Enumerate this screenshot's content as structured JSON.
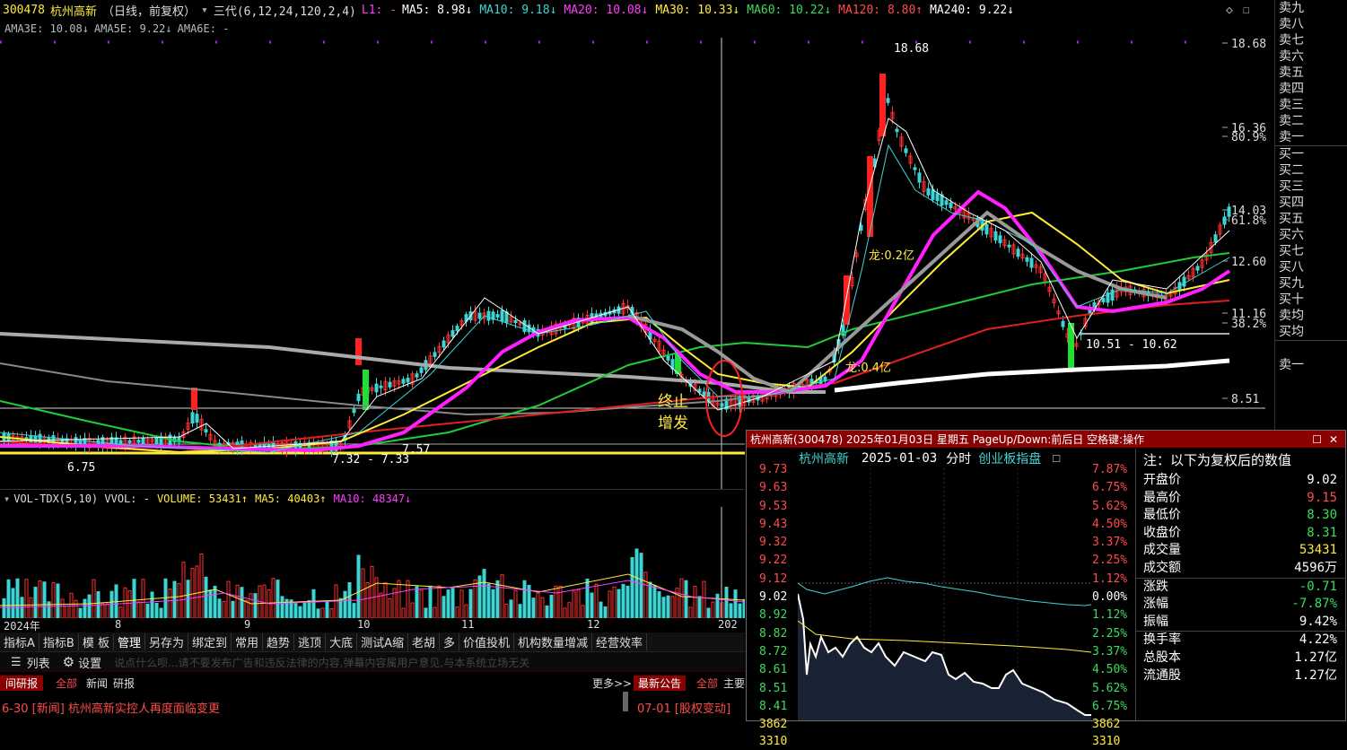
{
  "header": {
    "code": "300478",
    "name": "杭州高新",
    "mode": "（日线，前复权）",
    "indicator": "三代(6,12,24,120,2,4)",
    "l1": "L1: -",
    "ma_items": [
      {
        "label": "MA5: 8.98↓",
        "color": "#ffffff"
      },
      {
        "label": "MA10: 9.18↓",
        "color": "#3dd4d4"
      },
      {
        "label": "MA20: 10.08↓",
        "color": "#ff3dff"
      },
      {
        "label": "MA30: 10.33↓",
        "color": "#ffeb3b"
      },
      {
        "label": "MA60: 10.22↓",
        "color": "#3bdd5c"
      },
      {
        "label": "MA120: 8.80↑",
        "color": "#ff4b4b"
      },
      {
        "label": "MA240: 9.22↓",
        "color": "#ffffff"
      }
    ],
    "ama_items": [
      "AMA3E: 10.08↓",
      "AMA5E: 9.22↓",
      "AMA6E: -"
    ]
  },
  "price_axis": [
    "18.68",
    "16.36",
    "80.9%",
    "14.03",
    "61.8%",
    "12.60",
    "11.16",
    "38.2%",
    "8.51"
  ],
  "annotations": {
    "high": "18.68",
    "low": "6.75",
    "range1": "7.32 - 7.33",
    "range1b": "7.57",
    "range2": "10.51 - 10.62",
    "dragon1": "龙:0.2亿",
    "dragon2": "龙:0.4亿",
    "stop_text1": "终止",
    "stop_text2": "增发"
  },
  "volume_header": {
    "title": "VOL-TDX(5,10) VVOL: -",
    "volume": "VOLUME: 53431↑",
    "ma5": "MA5: 40403↑",
    "ma10": "MA10: 48347↓"
  },
  "date_axis": [
    "2024年",
    "8",
    "9",
    "10",
    "11",
    "12",
    "202"
  ],
  "toolbar_tabs": [
    "指标A",
    "指标B",
    "模 板",
    "管理",
    "另存为",
    "绑定到",
    "常用",
    "趋势",
    "逃顶",
    "大底",
    "测试A缩",
    "老胡",
    "多",
    "价值投机",
    "机构数量增减",
    "经营效率"
  ],
  "cmdbar": {
    "list_label": "列表",
    "settings_label": "设置",
    "placeholder": "说点什么呗...请不要发布广告和违反法律的内容,弹幕内容属用户意见,与本系统立场无关"
  },
  "newsbar": {
    "tabs_left": [
      "间研报",
      "全部",
      "新闻",
      "研报"
    ],
    "more": "更多>>",
    "tabs_right": [
      "最新公告",
      "全部",
      "主要"
    ],
    "news_left": "6-30 [新闻] 杭州高新实控人再度面临变更",
    "news_right": "07-01 [股权变动]"
  },
  "order_book": [
    "卖九",
    "卖八",
    "卖七",
    "卖六",
    "卖五",
    "卖四",
    "卖三",
    "卖二",
    "卖一",
    "买一",
    "买二",
    "买三",
    "买四",
    "买五",
    "买六",
    "买七",
    "买八",
    "买九",
    "买十",
    "卖均",
    "买均",
    "",
    "卖一"
  ],
  "popup": {
    "title": "杭州高新(300478) 2025年01月03日 星期五 PageUp/Down:前后日 空格键:操作",
    "name": "杭州高新",
    "date": "2025-01-03",
    "type": "分时",
    "board": "创业板指",
    "board_suffix": "盘",
    "left_prices": [
      {
        "v": "9.73",
        "c": "red"
      },
      {
        "v": "9.63",
        "c": "red"
      },
      {
        "v": "9.53",
        "c": "red"
      },
      {
        "v": "9.43",
        "c": "red"
      },
      {
        "v": "9.32",
        "c": "red"
      },
      {
        "v": "9.22",
        "c": "red"
      },
      {
        "v": "9.12",
        "c": "red"
      },
      {
        "v": "9.02",
        "c": "white"
      },
      {
        "v": "8.92",
        "c": "green"
      },
      {
        "v": "8.82",
        "c": "green"
      },
      {
        "v": "8.72",
        "c": "green"
      },
      {
        "v": "8.61",
        "c": "green"
      },
      {
        "v": "8.51",
        "c": "green"
      },
      {
        "v": "8.41",
        "c": "green"
      }
    ],
    "right_pcts": [
      {
        "v": "7.87%",
        "c": "red"
      },
      {
        "v": "6.75%",
        "c": "red"
      },
      {
        "v": "5.62%",
        "c": "red"
      },
      {
        "v": "4.50%",
        "c": "red"
      },
      {
        "v": "3.37%",
        "c": "red"
      },
      {
        "v": "2.25%",
        "c": "red"
      },
      {
        "v": "1.12%",
        "c": "red"
      },
      {
        "v": "0.00%",
        "c": "white"
      },
      {
        "v": "1.12%",
        "c": "green"
      },
      {
        "v": "2.25%",
        "c": "green"
      },
      {
        "v": "3.37%",
        "c": "green"
      },
      {
        "v": "4.50%",
        "c": "green"
      },
      {
        "v": "5.62%",
        "c": "green"
      },
      {
        "v": "6.75%",
        "c": "green"
      }
    ],
    "vol_left": [
      "3862",
      "3310"
    ],
    "vol_right": [
      "3862",
      "3310"
    ],
    "info_title": "注：以下为复权后的数值",
    "info_rows": [
      {
        "k": "开盘价",
        "v": "9.02",
        "c": "white"
      },
      {
        "k": "最高价",
        "v": "9.15",
        "c": "red"
      },
      {
        "k": "最低价",
        "v": "8.30",
        "c": "green"
      },
      {
        "k": "收盘价",
        "v": "8.31",
        "c": "green"
      },
      {
        "k": "成交量",
        "v": "53431",
        "c": "yellow"
      },
      {
        "k": "成交额",
        "v": "4596万",
        "c": "white"
      },
      {
        "k": "涨跌",
        "v": "-0.71",
        "c": "green"
      },
      {
        "k": "涨幅",
        "v": "-7.87%",
        "c": "green"
      },
      {
        "k": "振幅",
        "v": "9.42%",
        "c": "white"
      },
      {
        "k": "换手率",
        "v": "4.22%",
        "c": "white"
      },
      {
        "k": "总股本",
        "v": "1.27亿",
        "c": "white"
      },
      {
        "k": "流通股",
        "v": "1.27亿",
        "c": "white"
      }
    ]
  }
}
